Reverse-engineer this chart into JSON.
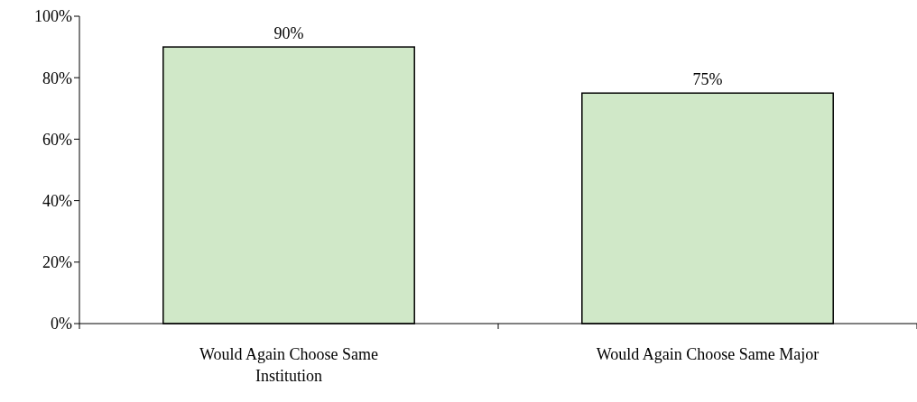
{
  "chart_data": {
    "type": "bar",
    "categories": [
      "Would Again Choose Same Institution",
      "Would Again Choose Same Major"
    ],
    "values": [
      90,
      75
    ],
    "value_labels": [
      "90%",
      "75%"
    ],
    "color": "#d0e8c8",
    "ylim": [
      0,
      100
    ],
    "yticks": [
      {
        "value": 0,
        "label": "0%"
      },
      {
        "value": 20,
        "label": "20%"
      },
      {
        "value": 40,
        "label": "40%"
      },
      {
        "value": 60,
        "label": "60%"
      },
      {
        "value": 80,
        "label": "80%"
      },
      {
        "value": 100,
        "label": "100%"
      }
    ],
    "grid": false
  }
}
